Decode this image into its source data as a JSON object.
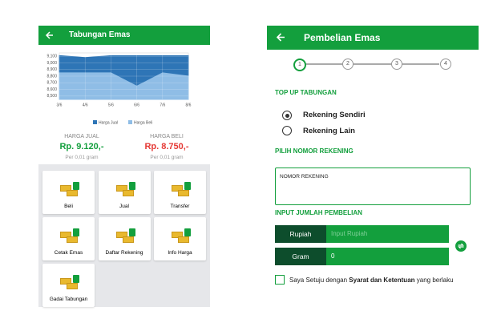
{
  "left_screen": {
    "header": {
      "title": "Tabungan Emas"
    },
    "chart": {
      "type": "area",
      "categories": [
        "3/6",
        "4/6",
        "5/6",
        "6/6",
        "7/6",
        "8/6"
      ],
      "series": [
        {
          "name": "Harga Jual",
          "color": "#2e75b6",
          "values": [
            9110,
            9080,
            9110,
            9110,
            9110,
            9110
          ]
        },
        {
          "name": "Harga Beli",
          "color": "#8fbde6",
          "values": [
            8850,
            8850,
            8850,
            8650,
            8850,
            8800
          ]
        }
      ],
      "ylim": [
        8450,
        9150
      ],
      "yticks": [
        {
          "value": 9100,
          "label": "9,100"
        },
        {
          "value": 9000,
          "label": "9,000"
        },
        {
          "value": 8900,
          "label": "8,900"
        },
        {
          "value": 8800,
          "label": "8,800"
        },
        {
          "value": 8700,
          "label": "8,700"
        },
        {
          "value": 8600,
          "label": "8,600"
        },
        {
          "value": 8500,
          "label": "8,500"
        }
      ],
      "grid": true
    },
    "prices": [
      {
        "label": "HARGA JUAL",
        "value": "Rp. 9.120,-",
        "unit": "Per 0,01 gram"
      },
      {
        "label": "HARGA BELI",
        "value": "Rp. 8.750,-",
        "unit": "Per 0,01 gram"
      }
    ],
    "tiles": [
      "Beli",
      "Jual",
      "Transfer",
      "Cetak Emas",
      "Daftar Rekening",
      "Info Harga",
      "Gadai Tabungan"
    ]
  },
  "right_screen": {
    "header": {
      "title": "Pembelian Emas"
    },
    "steps": [
      "1",
      "2",
      "3",
      "4"
    ],
    "top_up_title": "TOP UP TABUNGAN",
    "options": [
      "Rekening Sendiri",
      "Rekening Lain"
    ],
    "account_title": "PILIH NOMOR REKENING",
    "account_label": "NOMOR REKENING",
    "amount_title": "INPUT JUMLAH PEMBELIAN",
    "rupiah": {
      "label": "Rupiah",
      "placeholder": "Input Rupiah"
    },
    "gram": {
      "label": "Gram",
      "value": "0"
    },
    "agreement": {
      "before": "Saya Setuju dengan ",
      "link": "Syarat dan Ketentuan",
      "after": " yang berlaku"
    }
  }
}
